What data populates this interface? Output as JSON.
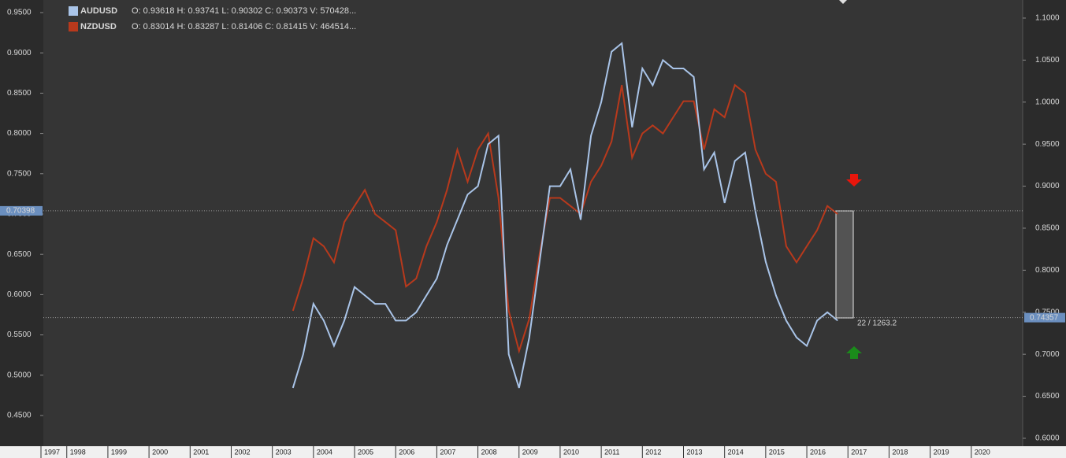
{
  "chart_data": {
    "type": "line",
    "x": [
      2003.5,
      2003.75,
      2004,
      2004.25,
      2004.5,
      2004.75,
      2005,
      2005.25,
      2005.5,
      2005.75,
      2006,
      2006.25,
      2006.5,
      2006.75,
      2007,
      2007.25,
      2007.5,
      2007.75,
      2008,
      2008.25,
      2008.5,
      2008.75,
      2009,
      2009.25,
      2009.5,
      2009.75,
      2010,
      2010.25,
      2010.5,
      2010.75,
      2011,
      2011.25,
      2011.5,
      2011.75,
      2012,
      2012.25,
      2012.5,
      2012.75,
      2013,
      2013.25,
      2013.5,
      2013.75,
      2014,
      2014.25,
      2014.5,
      2014.75,
      2015,
      2015.25,
      2015.5,
      2015.75,
      2016,
      2016.25,
      2016.5,
      2016.75
    ],
    "series": [
      {
        "name": "AUDUSD",
        "info": "O: 0.93618   H: 0.93741   L: 0.90302   C: 0.90373   V: 570428...",
        "color": "#a9c4e8",
        "axis": "y2",
        "values": [
          0.66,
          0.7,
          0.76,
          0.74,
          0.71,
          0.74,
          0.78,
          0.77,
          0.76,
          0.76,
          0.74,
          0.74,
          0.75,
          0.77,
          0.79,
          0.83,
          0.86,
          0.89,
          0.9,
          0.95,
          0.96,
          0.7,
          0.66,
          0.72,
          0.81,
          0.9,
          0.9,
          0.92,
          0.86,
          0.96,
          1.0,
          1.06,
          1.07,
          0.97,
          1.04,
          1.02,
          1.05,
          1.04,
          1.04,
          1.03,
          0.92,
          0.94,
          0.88,
          0.93,
          0.94,
          0.87,
          0.81,
          0.77,
          0.74,
          0.72,
          0.71,
          0.74,
          0.75,
          0.74
        ]
      },
      {
        "name": "NZDUSD",
        "info": "O: 0.83014   H: 0.83287   L: 0.81406   C: 0.81415   V: 464514...",
        "color": "#b8391c",
        "axis": "y",
        "values": [
          0.58,
          0.62,
          0.67,
          0.66,
          0.64,
          0.69,
          0.71,
          0.73,
          0.7,
          0.69,
          0.68,
          0.61,
          0.62,
          0.66,
          0.69,
          0.73,
          0.78,
          0.74,
          0.78,
          0.8,
          0.72,
          0.58,
          0.53,
          0.57,
          0.65,
          0.72,
          0.72,
          0.71,
          0.7,
          0.74,
          0.76,
          0.79,
          0.86,
          0.77,
          0.8,
          0.81,
          0.8,
          0.82,
          0.84,
          0.84,
          0.78,
          0.83,
          0.82,
          0.86,
          0.85,
          0.78,
          0.75,
          0.74,
          0.66,
          0.64,
          0.66,
          0.68,
          0.71,
          0.7
        ]
      }
    ],
    "xlim": [
      1997.43,
      2021.25
    ],
    "xticks": [
      1997,
      1998,
      1999,
      2000,
      2001,
      2002,
      2003,
      2004,
      2005,
      2006,
      2007,
      2008,
      2009,
      2010,
      2011,
      2012,
      2013,
      2014,
      2015,
      2016,
      2017,
      2018,
      2019,
      2020
    ],
    "ylim": [
      0.4119,
      0.9656
    ],
    "yticks": [
      {
        "value": 0.45,
        "label": "0.4500"
      },
      {
        "value": 0.5,
        "label": "0.5000"
      },
      {
        "value": 0.55,
        "label": "0.5500"
      },
      {
        "value": 0.6,
        "label": "0.6000"
      },
      {
        "value": 0.65,
        "label": "0.6500"
      },
      {
        "value": 0.7,
        "label": "0.7000"
      },
      {
        "value": 0.75,
        "label": "0.7500"
      },
      {
        "value": 0.8,
        "label": "0.8000"
      },
      {
        "value": 0.85,
        "label": "0.8500"
      },
      {
        "value": 0.9,
        "label": "0.9000"
      },
      {
        "value": 0.95,
        "label": "0.9500"
      }
    ],
    "y2lim": [
      0.5906,
      1.1215
    ],
    "y2ticks": [
      {
        "value": 0.6,
        "label": "0.6000"
      },
      {
        "value": 0.65,
        "label": "0.6500"
      },
      {
        "value": 0.7,
        "label": "0.7000"
      },
      {
        "value": 0.75,
        "label": "0.7500"
      },
      {
        "value": 0.8,
        "label": "0.8000"
      },
      {
        "value": 0.85,
        "label": "0.8500"
      },
      {
        "value": 0.9,
        "label": "0.9000"
      },
      {
        "value": 0.95,
        "label": "0.9500"
      },
      {
        "value": 1.0,
        "label": "1.0000"
      },
      {
        "value": 1.05,
        "label": "1.0500"
      },
      {
        "value": 1.1,
        "label": "1.1000"
      }
    ],
    "price_lines": [
      {
        "axis": "y",
        "value": 0.70398
      },
      {
        "axis": "y2",
        "value": 0.74357
      }
    ],
    "annotation": "22 / 1263.2"
  }
}
